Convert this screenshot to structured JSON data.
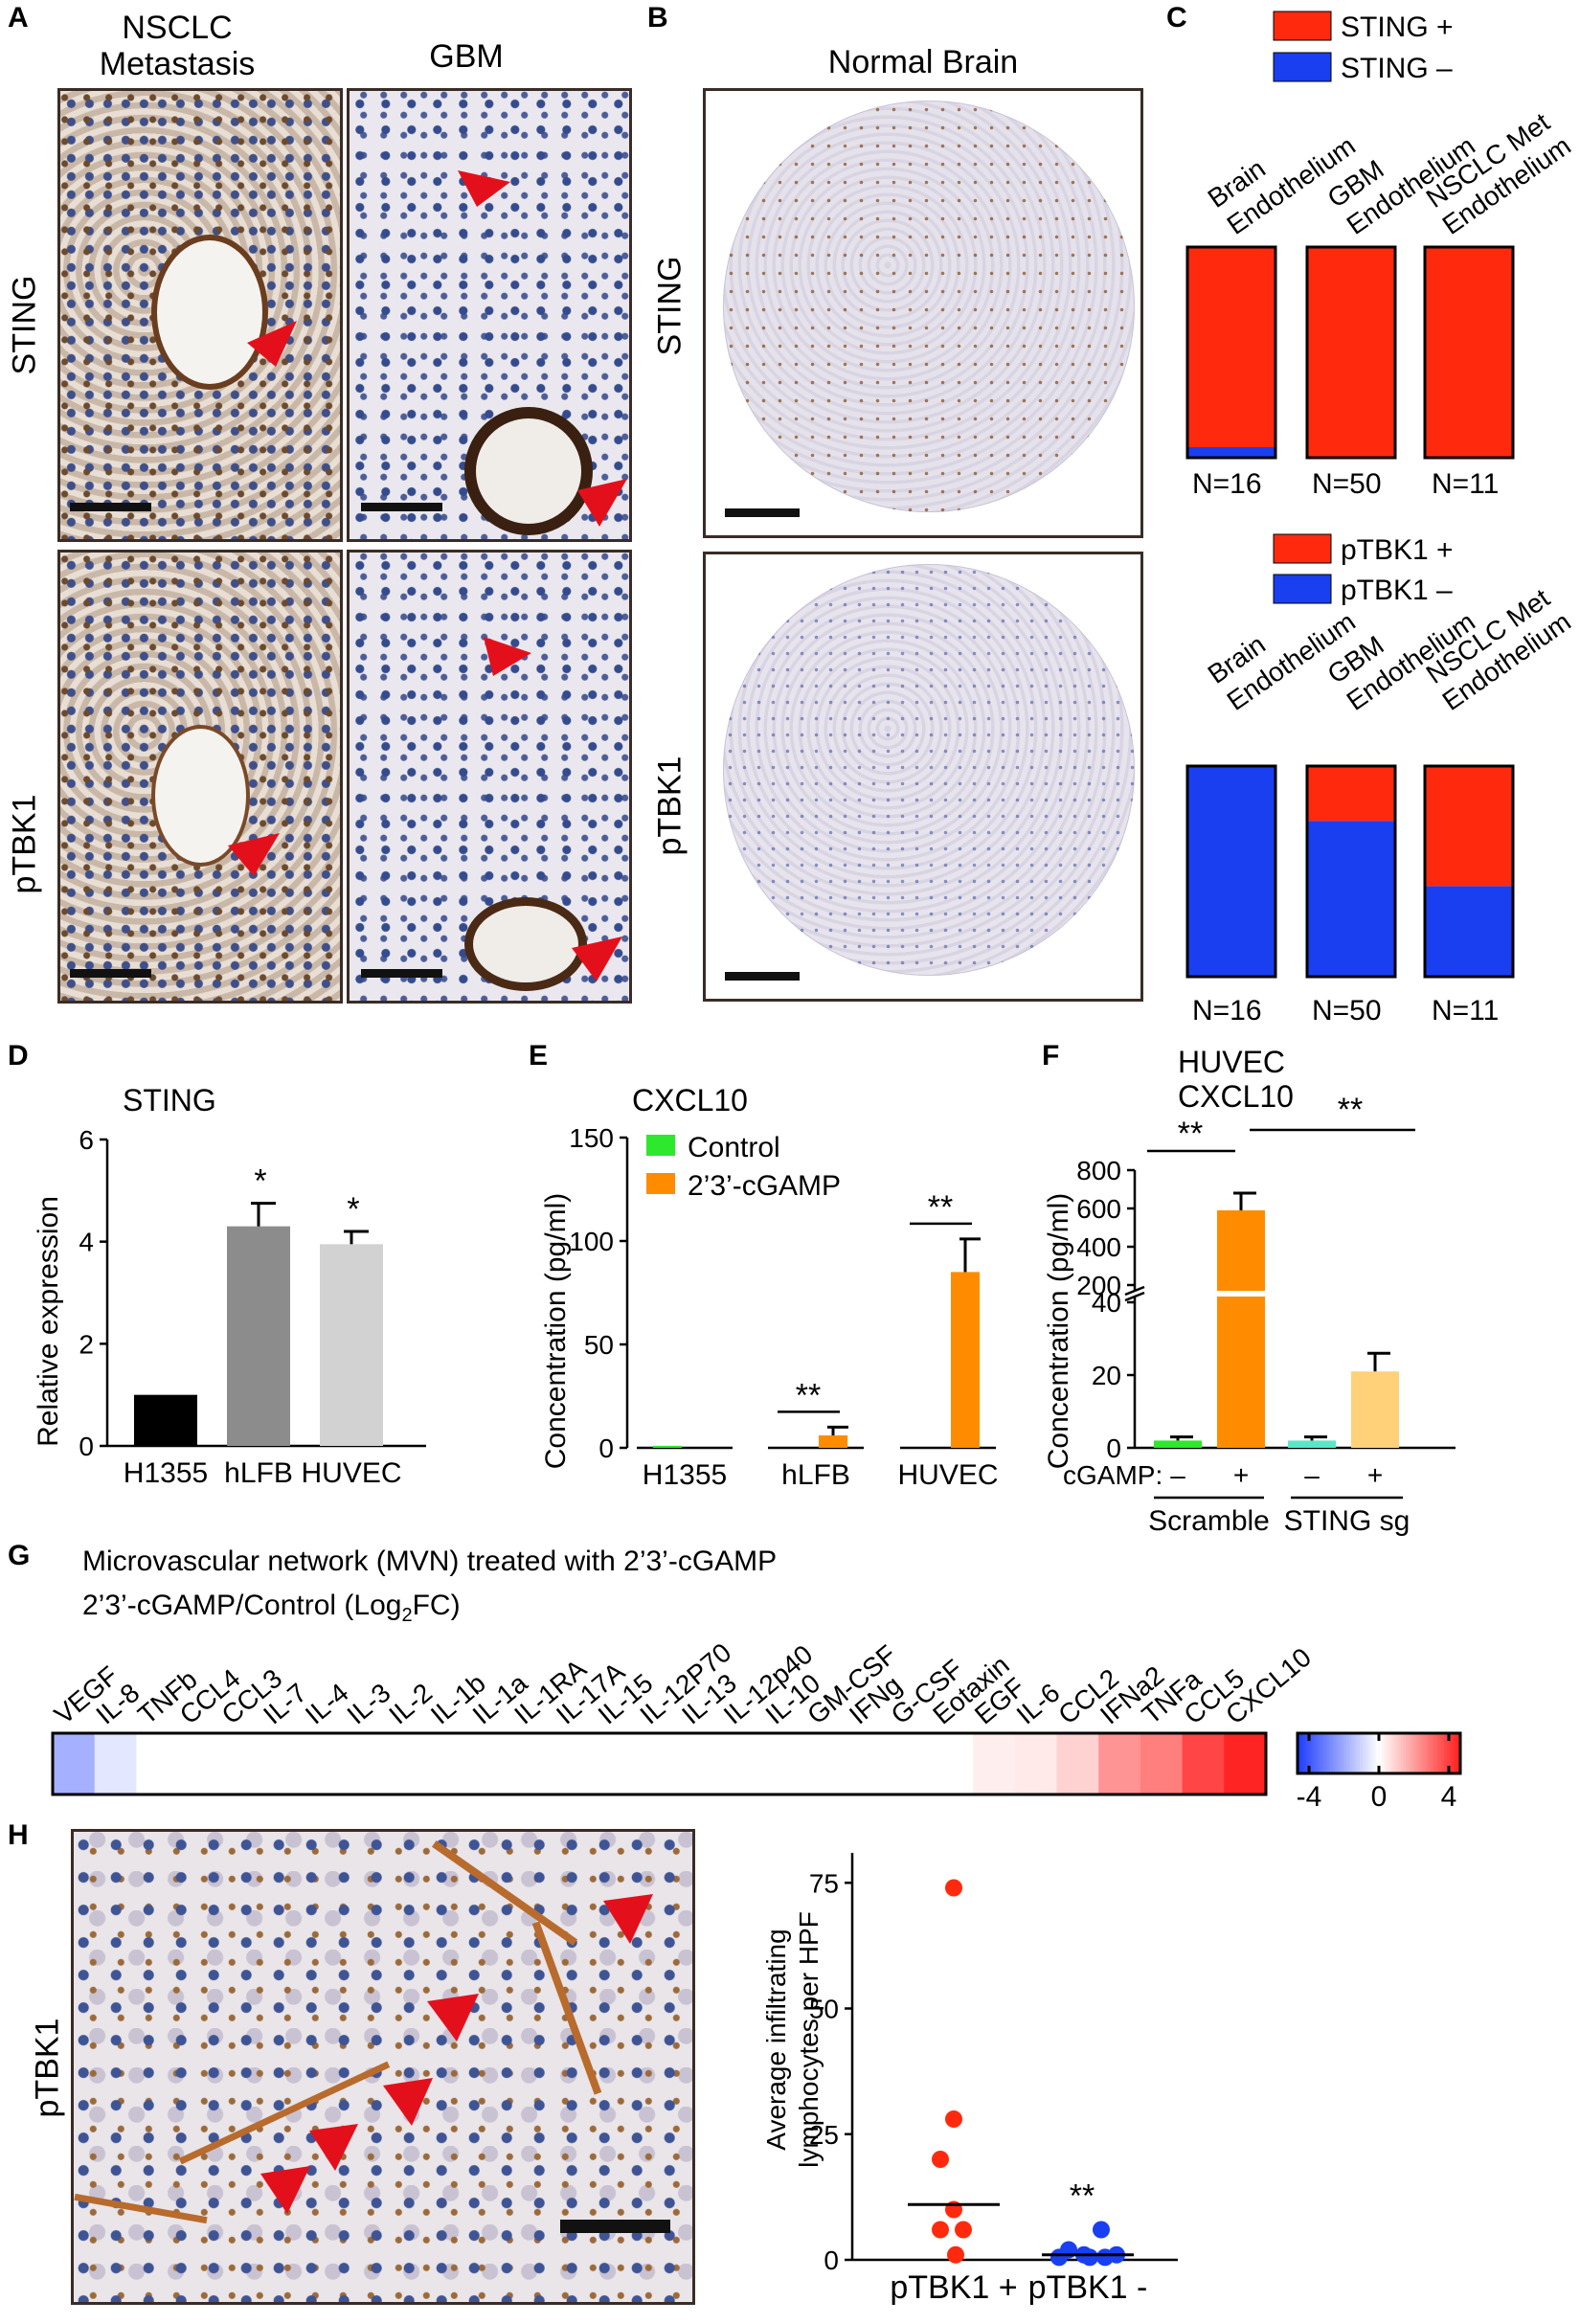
{
  "panel_letters": {
    "a": "A",
    "b": "B",
    "c": "C",
    "d": "D",
    "e": "E",
    "f": "F",
    "g": "G",
    "h": "H"
  },
  "panelA": {
    "col1_line1": "NSCLC",
    "col1_line2": "Metastasis",
    "col2": "GBM",
    "row1": "STING",
    "row2": "pTBK1"
  },
  "panelB": {
    "title": "Normal Brain",
    "row1": "STING",
    "row2": "pTBK1"
  },
  "panelC": {
    "legend1": [
      {
        "label": "STING +",
        "color": "#ff2a0e"
      },
      {
        "label": "STING –",
        "color": "#1a3ff0"
      }
    ],
    "legend2": [
      {
        "label": "pTBK1 +",
        "color": "#ff2a0e"
      },
      {
        "label": "pTBK1 –",
        "color": "#1a3ff0"
      }
    ],
    "categories": [
      {
        "line1": "Brain",
        "line2": "Endothelium"
      },
      {
        "line1": "GBM",
        "line2": "Endothelium"
      },
      {
        "line1": "NSCLC Met",
        "line2": "Endothelium"
      }
    ],
    "n_labels": [
      "N=16",
      "N=50",
      "N=11"
    ]
  },
  "chart_data": [
    {
      "id": "C-STING",
      "type": "bar",
      "stacked": true,
      "categories": [
        "Brain Endothelium",
        "GBM Endothelium",
        "NSCLC Met Endothelium"
      ],
      "series": [
        {
          "name": "STING –",
          "values": [
            0.05,
            0.0,
            0.0
          ]
        },
        {
          "name": "STING +",
          "values": [
            0.95,
            1.0,
            1.0
          ]
        }
      ],
      "ylim": [
        0,
        1
      ]
    },
    {
      "id": "C-pTBK1",
      "type": "bar",
      "stacked": true,
      "categories": [
        "Brain Endothelium",
        "GBM Endothelium",
        "NSCLC Met Endothelium"
      ],
      "series": [
        {
          "name": "pTBK1 –",
          "values": [
            1.0,
            0.74,
            0.43
          ]
        },
        {
          "name": "pTBK1 +",
          "values": [
            0.0,
            0.26,
            0.57
          ]
        }
      ],
      "ylim": [
        0,
        1
      ]
    },
    {
      "id": "D",
      "type": "bar",
      "title": "STING",
      "ylabel": "Relative expression",
      "categories": [
        "H1355",
        "hLFB",
        "HUVEC"
      ],
      "values": [
        1.0,
        4.3,
        3.95
      ],
      "errors": [
        0,
        0.45,
        0.25
      ],
      "colors": [
        "#000000",
        "#8c8c8c",
        "#d2d2d2"
      ],
      "significance": [
        "",
        "*",
        "*"
      ],
      "yticks": [
        "0",
        "2",
        "4",
        "6"
      ],
      "ylim": [
        0,
        6
      ]
    },
    {
      "id": "E",
      "type": "bar",
      "title": "CXCL10",
      "ylabel": "Concentration (pg/ml)",
      "categories": [
        "H1355",
        "hLFB",
        "HUVEC"
      ],
      "series": [
        {
          "name": "Control",
          "color": "#2ee82e",
          "values": [
            1,
            0,
            0
          ],
          "errors": [
            0,
            0,
            0
          ]
        },
        {
          "name": "2’3’-cGAMP",
          "color": "#ff8c00",
          "values": [
            0,
            6,
            85
          ],
          "errors": [
            0,
            4,
            16
          ]
        }
      ],
      "significance": [
        "",
        "**",
        "**"
      ],
      "yticks": [
        "0",
        "50",
        "100",
        "150"
      ],
      "ylim": [
        0,
        150
      ]
    },
    {
      "id": "F",
      "type": "bar",
      "title_line1": "HUVEC",
      "title_line2": "CXCL10",
      "ylabel": "Concentration (pg/ml)",
      "x_row_label": "cGAMP:",
      "treatment": [
        "–",
        "+",
        "–",
        "+"
      ],
      "groups": [
        "Scramble",
        "STING sg"
      ],
      "values": [
        2,
        590,
        2,
        21
      ],
      "errors": [
        1,
        90,
        1,
        5
      ],
      "colors": [
        "#2ee82e",
        "#ff8c00",
        "#5ce6c8",
        "#ffd27a"
      ],
      "significance": [
        "**",
        "**"
      ],
      "yticks_low": [
        "0",
        "20",
        "40"
      ],
      "yticks_high": [
        "200",
        "400",
        "600",
        "800"
      ],
      "ylim_low": [
        0,
        40
      ],
      "ylim_high": [
        200,
        800
      ]
    },
    {
      "id": "G",
      "type": "heatmap",
      "title": "Microvascular network (MVN) treated with 2’3’-cGAMP",
      "subtitle_main": "2’3’-cGAMP/Control (Log",
      "subtitle_sub": "2",
      "subtitle_end": "FC)",
      "labels": [
        "VEGF",
        "IL-8",
        "TNFb",
        "CCL4",
        "CCL3",
        "IL-7",
        "IL-4",
        "IL-3",
        "IL-2",
        "IL-1b",
        "IL-1a",
        "IL-1RA",
        "IL-17A",
        "IL-15",
        "IL-12P70",
        "IL-13",
        "IL-12p40",
        "IL-10",
        "GM-CSF",
        "IFNg",
        "G-CSF",
        "Eotaxin",
        "EGF",
        "IL-6",
        "CCL2",
        "IFNa2",
        "TNFa",
        "CCL5",
        "CXCL10"
      ],
      "values": [
        -1.6,
        -0.5,
        0,
        0,
        0,
        0,
        0,
        0,
        0,
        0,
        0,
        0,
        0,
        0,
        0,
        0,
        0,
        0,
        0,
        0,
        0,
        0,
        0.3,
        0.4,
        0.8,
        1.9,
        2.3,
        3.3,
        3.9
      ],
      "colorbar_ticks": [
        "-4",
        "0",
        "4"
      ],
      "range": [
        -4,
        4
      ]
    },
    {
      "id": "H",
      "type": "scatter",
      "ylabel_line1": "Average infiltrating",
      "ylabel_line2": "lymphocytes per HPF",
      "categories": [
        "pTBK1 +",
        "pTBK1 -"
      ],
      "series": [
        {
          "name": "pTBK1 +",
          "color": "#ff2a0e",
          "values": [
            74,
            28,
            20,
            10,
            6,
            6,
            1
          ],
          "median": 11
        },
        {
          "name": "pTBK1 -",
          "color": "#1a3ff0",
          "values": [
            6,
            2,
            1,
            1,
            0.5,
            0.5,
            0.5
          ],
          "median": 1
        }
      ],
      "significance": [
        "",
        "**"
      ],
      "yticks": [
        "0",
        "25",
        "50",
        "75"
      ],
      "ylim": [
        0,
        80
      ]
    }
  ],
  "panelH": {
    "row_label": "pTBK1"
  }
}
